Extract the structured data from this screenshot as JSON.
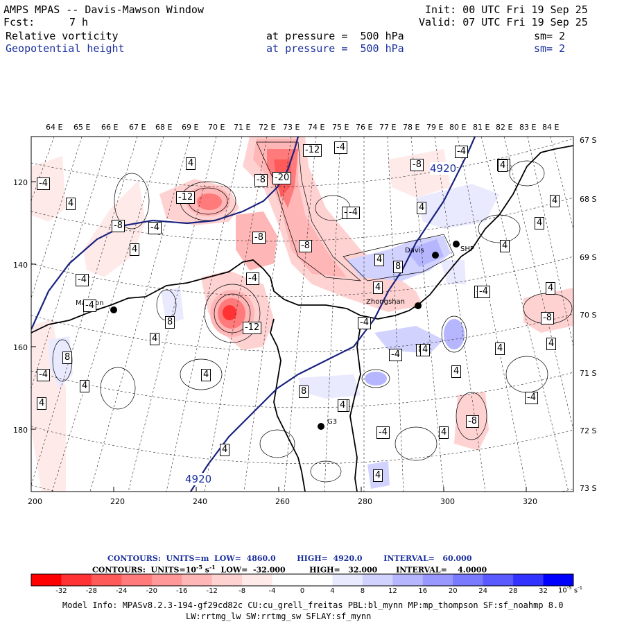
{
  "header": {
    "title": "AMPS MPAS -- Davis-Mawson Window",
    "fcst_label": "Fcst:",
    "fcst_value": "7 h",
    "init": "Init: 00 UTC Fri 19 Sep 25",
    "valid": "Valid: 07 UTC Fri 19 Sep 25",
    "fields": [
      {
        "name": "Relative vorticity",
        "level": "at pressure =  500 hPa",
        "smooth": "sm= 2"
      },
      {
        "name": "Geopotential height",
        "level": "at pressure =  500 hPa",
        "smooth": "sm= 2"
      }
    ]
  },
  "map": {
    "top_longitudes": [
      "64 E",
      "65 E",
      "66 E",
      "67 E",
      "68 E",
      "69 E",
      "70 E",
      "71 E",
      "72 E",
      "73 E",
      "74 E",
      "75 E",
      "76 E",
      "77 E",
      "78 E",
      "79 E",
      "80 E",
      "81 E",
      "82 E",
      "83 E",
      "84 E"
    ],
    "right_latitudes": [
      "67 S",
      "68 S",
      "69 S",
      "70 S",
      "71 S",
      "72 S",
      "73 S"
    ],
    "left_ticks": [
      "120",
      "140",
      "160",
      "180"
    ],
    "bottom_ticks": [
      "200",
      "220",
      "240",
      "260",
      "280",
      "300",
      "320"
    ],
    "stations": [
      "Mawson",
      "Davis",
      "SHP",
      "Zhongshan",
      "G3"
    ],
    "height_labels": [
      "4920",
      "4920"
    ],
    "vort_labels": [
      "-12",
      "-20",
      "-4",
      "-12",
      "-8",
      "-4",
      "-8",
      "-8",
      "-4",
      "-4",
      "-12",
      "-8",
      "-4",
      "-4",
      "-4",
      "-4",
      "4",
      "-8",
      "-4",
      "4",
      "4",
      "4",
      "8",
      "-4",
      "-8",
      "4",
      "4",
      "4",
      "4",
      "8",
      "4",
      "4",
      "4",
      "4",
      "-8",
      "4",
      "8",
      "-4",
      "8",
      "4",
      "4",
      "4",
      "-4",
      "4",
      "4",
      "4",
      "4",
      "8",
      "-4",
      "4",
      "-4",
      "-8",
      "-4",
      "-4",
      "4",
      "4",
      "4"
    ]
  },
  "legend": {
    "line1": "CONTOURS:  UNITS=m  LOW=  4860.0        HIGH=  4920.0        INTERVAL=   60.000",
    "line2_a": "CONTOURS:  UNITS=10",
    "line2_b": "-5",
    "line2_c": " s",
    "line2_d": "-1",
    "line2_e": "  LOW=  -32.000         HIGH=   32.000       INTERVAL=    4.0000",
    "colorbar_labels": [
      "-32",
      "-28",
      "-24",
      "-20",
      "-16",
      "-12",
      "-8",
      "-4",
      "0",
      "4",
      "8",
      "12",
      "16",
      "20",
      "24",
      "28",
      "32"
    ],
    "colorbar_units": "10",
    "colorbar_units_exp": "-5",
    "colorbar_units_s": " s",
    "colorbar_units_s_exp": "-1",
    "colors": [
      "#ff0000",
      "#ff3333",
      "#ff5a5a",
      "#ff7a7a",
      "#ff9898",
      "#ffb6b6",
      "#ffd2d2",
      "#ffeaea",
      "#ffffff",
      "#ffffff",
      "#eaeaff",
      "#d2d2ff",
      "#b6b6ff",
      "#9898ff",
      "#7a7aff",
      "#5a5aff",
      "#3333ff",
      "#0000ff"
    ]
  },
  "footer": {
    "line1": "Model Info: MPASv8.2.3-194-gf29cd82c CU:cu_grell_freitas PBL:bl_mynn MP:mp_thompson SF:sf_noahmp 8.0",
    "line2": "LW:rrtmg_lw SW:rrtmg_sw SFLAY:sf_mynn"
  }
}
